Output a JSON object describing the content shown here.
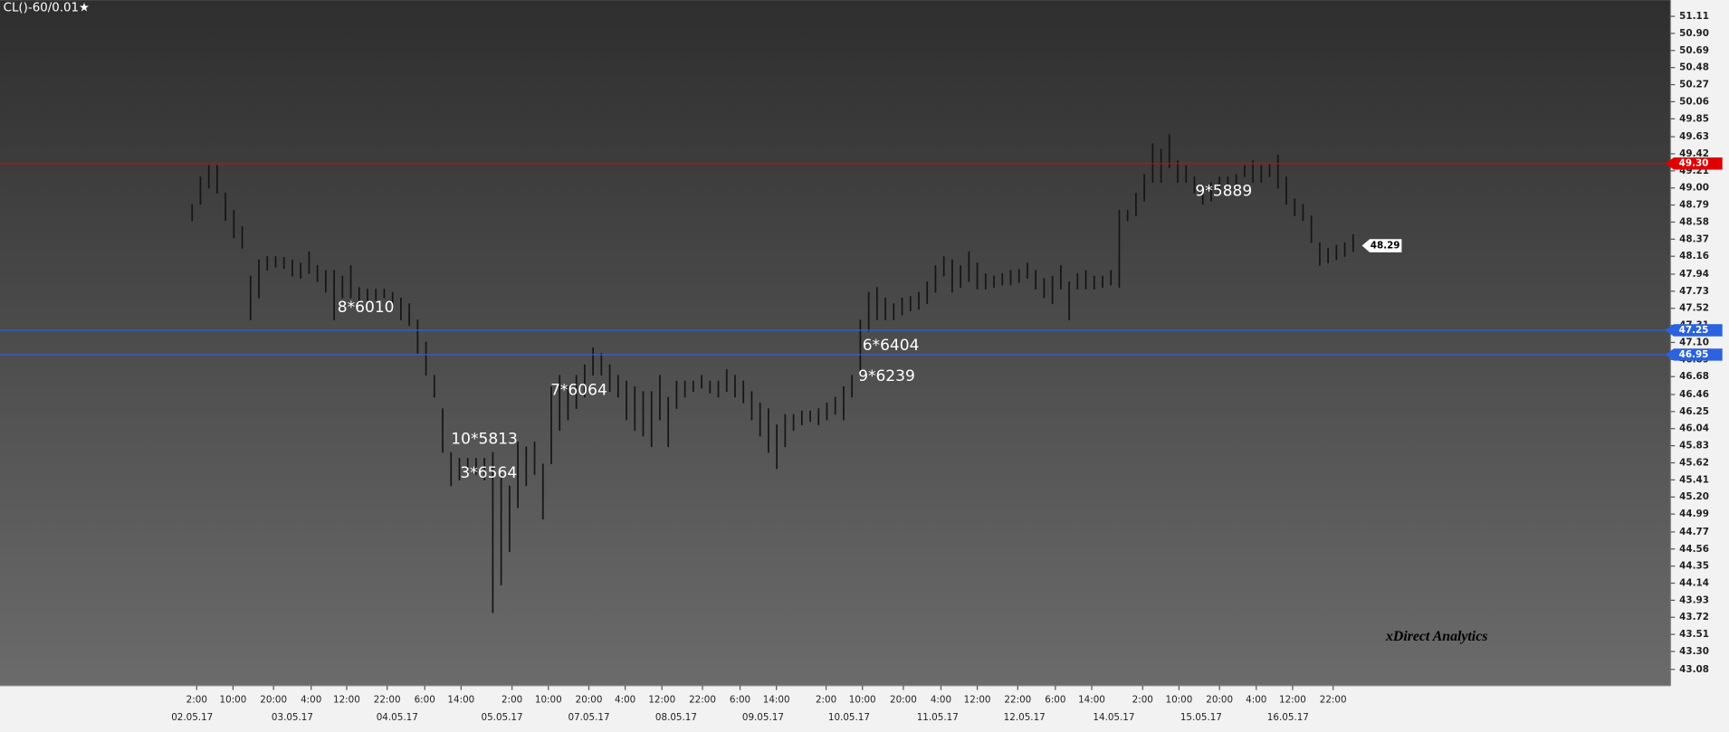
{
  "chart_data": {
    "type": "range-bar",
    "title": "CL()-60/0.01★",
    "watermark": "xDirect Analytics",
    "color": "#151515",
    "x": [
      0,
      2,
      4,
      6,
      8,
      10,
      12,
      14,
      16,
      18,
      20,
      22,
      24,
      26,
      28,
      30,
      32,
      34,
      36,
      38,
      40,
      42,
      44,
      46,
      48,
      50,
      52,
      54,
      56,
      58,
      60,
      62,
      64,
      66,
      68,
      70,
      72,
      74,
      76,
      78,
      80,
      82,
      84,
      86,
      88,
      90,
      92,
      94,
      96,
      98,
      100,
      102,
      104,
      106,
      108,
      110,
      112,
      114,
      116,
      118,
      120,
      122,
      124,
      126,
      128,
      130,
      132,
      134,
      136,
      138,
      140,
      142,
      144,
      146,
      148,
      150,
      152,
      154,
      156,
      158,
      160,
      162,
      164,
      166,
      168,
      170,
      172,
      174,
      176,
      178,
      180,
      182,
      184,
      186,
      188,
      190,
      192,
      194,
      196,
      198,
      200,
      202,
      204,
      206,
      208,
      210,
      212,
      214,
      216,
      218,
      220,
      222,
      224,
      226,
      228,
      230,
      232,
      234,
      236,
      238,
      240,
      242,
      244,
      246,
      248,
      250,
      252,
      254,
      256,
      258,
      260,
      262,
      264,
      266,
      268,
      270,
      272,
      274,
      276,
      278
    ],
    "high": [
      48.8,
      49.14,
      49.28,
      49.28,
      48.94,
      48.73,
      48.53,
      47.92,
      48.12,
      48.16,
      48.16,
      48.15,
      48.12,
      48.08,
      48.22,
      48.05,
      47.99,
      47.99,
      47.92,
      48.05,
      47.78,
      47.76,
      47.76,
      47.76,
      47.72,
      47.65,
      47.58,
      47.38,
      47.11,
      46.7,
      46.29,
      45.75,
      45.68,
      45.68,
      45.68,
      45.68,
      45.75,
      45.48,
      45.34,
      45.88,
      45.82,
      45.88,
      45.61,
      46.56,
      46.7,
      46.56,
      46.7,
      46.83,
      47.04,
      46.97,
      46.83,
      46.7,
      46.63,
      46.56,
      46.5,
      46.5,
      46.7,
      46.43,
      46.63,
      46.63,
      46.63,
      46.7,
      46.63,
      46.63,
      46.77,
      46.7,
      46.63,
      46.5,
      46.36,
      46.29,
      46.09,
      46.22,
      46.22,
      46.26,
      46.26,
      46.29,
      46.36,
      46.43,
      46.56,
      46.7,
      47.38,
      47.72,
      47.78,
      47.65,
      47.58,
      47.65,
      47.67,
      47.72,
      47.85,
      48.05,
      48.16,
      48.12,
      48.05,
      48.22,
      48.08,
      47.95,
      47.92,
      47.95,
      47.99,
      48.0,
      48.08,
      47.99,
      47.89,
      47.92,
      48.05,
      47.85,
      47.95,
      47.99,
      47.92,
      47.92,
      47.99,
      48.73,
      48.73,
      48.94,
      49.17,
      49.55,
      49.48,
      49.66,
      49.34,
      49.28,
      49.14,
      49.0,
      49.07,
      49.14,
      49.14,
      49.17,
      49.28,
      49.34,
      49.28,
      49.3,
      49.41,
      49.14,
      48.87,
      48.8,
      48.66,
      48.33,
      48.26,
      48.3,
      48.33,
      48.43
    ],
    "low": [
      48.6,
      48.8,
      49.0,
      48.94,
      48.6,
      48.39,
      48.26,
      47.38,
      47.65,
      47.99,
      48.03,
      48.01,
      47.92,
      47.89,
      47.95,
      47.85,
      47.72,
      47.38,
      47.65,
      47.65,
      47.58,
      47.62,
      47.62,
      47.65,
      47.51,
      47.38,
      47.31,
      46.97,
      46.7,
      46.43,
      45.75,
      45.34,
      45.41,
      45.48,
      45.48,
      45.41,
      43.78,
      44.12,
      44.53,
      45.07,
      45.34,
      45.48,
      44.93,
      45.61,
      46.02,
      46.15,
      46.29,
      46.43,
      46.7,
      46.7,
      46.5,
      46.43,
      46.15,
      46.02,
      45.95,
      45.82,
      46.15,
      45.82,
      46.29,
      46.43,
      46.5,
      46.54,
      46.48,
      46.43,
      46.5,
      46.43,
      46.36,
      46.15,
      45.95,
      45.75,
      45.55,
      45.82,
      46.02,
      46.09,
      46.13,
      46.09,
      46.15,
      46.22,
      46.15,
      46.43,
      46.7,
      47.24,
      47.38,
      47.38,
      47.38,
      47.44,
      47.49,
      47.51,
      47.58,
      47.72,
      47.92,
      47.72,
      47.78,
      47.85,
      47.76,
      47.76,
      47.78,
      47.81,
      47.81,
      47.84,
      47.89,
      47.76,
      47.65,
      47.58,
      47.76,
      47.38,
      47.76,
      47.76,
      47.76,
      47.78,
      47.81,
      47.78,
      48.6,
      48.66,
      48.84,
      49.07,
      49.07,
      49.25,
      49.07,
      49.07,
      48.94,
      48.8,
      48.84,
      48.94,
      49.03,
      49.0,
      49.14,
      49.07,
      49.07,
      49.14,
      49.0,
      48.8,
      48.66,
      48.6,
      48.33,
      48.05,
      48.08,
      48.12,
      48.16,
      48.22
    ],
    "xlim": [
      -46,
      354
    ],
    "ylim": [
      42.88,
      51.31
    ],
    "yticks": [
      51.11,
      {
        "value": 50.9,
        "label": "50.90"
      },
      50.69,
      50.48,
      50.27,
      50.06,
      49.85,
      49.63,
      49.42,
      49.21,
      {
        "value": 49.0,
        "label": "49.00"
      },
      48.79,
      48.58,
      48.37,
      48.16,
      47.94,
      47.73,
      47.52,
      47.31,
      {
        "value": 47.1,
        "label": "47.10"
      },
      46.89,
      46.68,
      46.46,
      46.25,
      46.04,
      45.83,
      45.62,
      45.41,
      {
        "value": 45.2,
        "label": "45.20"
      },
      44.99,
      44.77,
      44.56,
      44.35,
      44.14,
      43.93,
      43.72,
      43.51,
      {
        "value": 43.3,
        "label": "43.30"
      },
      43.08
    ],
    "xticks": [
      {
        "value": 1.1,
        "label": "2:00"
      },
      {
        "value": 9.8,
        "label": "10:00"
      },
      {
        "value": 19.5,
        "label": "20:00"
      },
      {
        "value": 28.5,
        "label": "4:00"
      },
      {
        "value": 37,
        "label": "12:00"
      },
      {
        "value": 46.7,
        "label": "22:00"
      },
      {
        "value": 55.7,
        "label": "6:00"
      },
      {
        "value": 64.4,
        "label": "14:00"
      },
      {
        "value": 76.6,
        "label": "2:00"
      },
      {
        "value": 85.3,
        "label": "10:00"
      },
      {
        "value": 95,
        "label": "20:00"
      },
      {
        "value": 103.7,
        "label": "4:00"
      },
      {
        "value": 112.5,
        "label": "12:00"
      },
      {
        "value": 122.2,
        "label": "22:00"
      },
      {
        "value": 131.2,
        "label": "6:00"
      },
      {
        "value": 139.9,
        "label": "14:00"
      },
      {
        "value": 151.8,
        "label": "2:00"
      },
      {
        "value": 160.5,
        "label": "10:00"
      },
      {
        "value": 170.3,
        "label": "20:00"
      },
      {
        "value": 179.3,
        "label": "4:00"
      },
      {
        "value": 188,
        "label": "12:00"
      },
      {
        "value": 197.7,
        "label": "22:00"
      },
      {
        "value": 206.7,
        "label": "6:00"
      },
      {
        "value": 215.4,
        "label": "14:00"
      },
      {
        "value": 227.6,
        "label": "2:00"
      },
      {
        "value": 236.3,
        "label": "10:00"
      },
      {
        "value": 246,
        "label": "20:00"
      },
      {
        "value": 254.8,
        "label": "4:00"
      },
      {
        "value": 263.5,
        "label": "12:00"
      },
      {
        "value": 273.2,
        "label": "22:00"
      }
    ],
    "date_ticks": [
      {
        "value": 0,
        "label": "02.05.17"
      },
      {
        "value": 24,
        "label": "03.05.17"
      },
      {
        "value": 49.1,
        "label": "04.05.17"
      },
      {
        "value": 74.2,
        "label": "05.05.17"
      },
      {
        "value": 95,
        "label": "07.05.17"
      },
      {
        "value": 115.9,
        "label": "08.05.17"
      },
      {
        "value": 136.7,
        "label": "09.05.17"
      },
      {
        "value": 157.3,
        "label": "10.05.17"
      },
      {
        "value": 178.5,
        "label": "11.05.17"
      },
      {
        "value": 199.3,
        "label": "12.05.17"
      },
      {
        "value": 220.7,
        "label": "14.05.17"
      },
      {
        "value": 241.6,
        "label": "15.05.17"
      },
      {
        "value": 262.4,
        "label": "16.05.17"
      }
    ],
    "levels": [
      {
        "value": 49.3,
        "label": "49.30",
        "color": "#e00000"
      },
      {
        "value": 47.25,
        "label": "47.25",
        "color": "#2a62e0"
      },
      {
        "value": 46.95,
        "label": "46.95",
        "color": "#2a62e0"
      }
    ],
    "last_price": {
      "value": 48.29,
      "label": "48.29"
    },
    "annotations": [
      {
        "text": "8*6010",
        "x": 34.8,
        "y": 47.53
      },
      {
        "text": "10*5813",
        "x": 62,
        "y": 45.91
      },
      {
        "text": "3*6564",
        "x": 64.2,
        "y": 45.49
      },
      {
        "text": "7*6064",
        "x": 85.8,
        "y": 46.51
      },
      {
        "text": "6*6404",
        "x": 160.5,
        "y": 47.06
      },
      {
        "text": "9*6239",
        "x": 159.5,
        "y": 46.68
      },
      {
        "text": "9*5889",
        "x": 240.2,
        "y": 48.96
      }
    ]
  }
}
